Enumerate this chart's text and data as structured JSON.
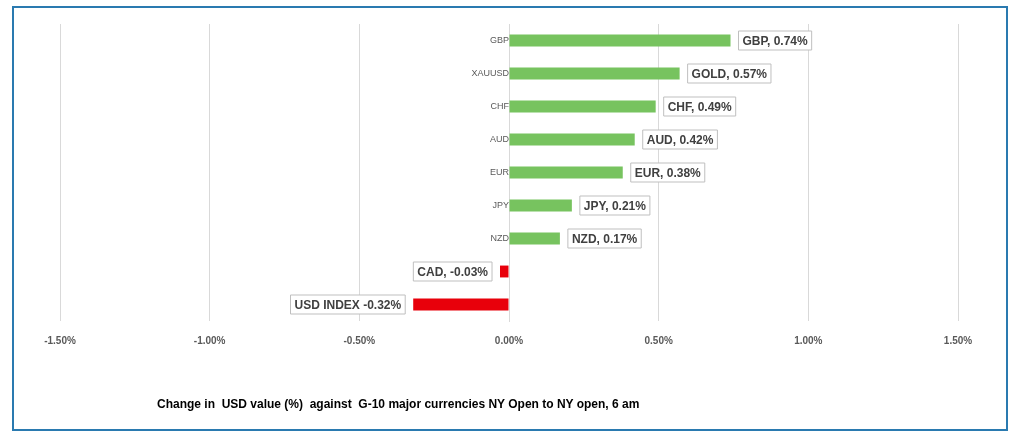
{
  "chart_data": {
    "type": "bar",
    "orientation": "horizontal",
    "annotations": [
      "Change in  USD value (%)  against  G-10 major currencies NY Open to NY open, 6 am"
    ],
    "categories": [
      "GBP",
      "XAUUSD",
      "CHF",
      "AUD",
      "EUR",
      "JPY",
      "NZD",
      null,
      null
    ],
    "values": [
      0.74,
      0.57,
      0.49,
      0.42,
      0.38,
      0.21,
      0.17,
      -0.03,
      -0.32
    ],
    "colors": [
      "#77c35f",
      "#77c35f",
      "#77c35f",
      "#77c35f",
      "#77c35f",
      "#77c35f",
      "#77c35f",
      "#e8000b",
      "#e8000b"
    ],
    "value_labels": [
      "GBP, 0.74%",
      "GOLD, 0.57%",
      "CHF, 0.49%",
      "AUD, 0.42%",
      "EUR, 0.38%",
      "JPY, 0.21%",
      "NZD, 0.17%",
      "CAD, -0.03%",
      "USD INDEX -0.32%"
    ],
    "xlim": [
      -1.5,
      1.5
    ],
    "xticks": [
      {
        "value": -1.5,
        "label": "-1.50%"
      },
      {
        "value": -1,
        "label": "-1.00%"
      },
      {
        "value": -0.5,
        "label": "-0.50%"
      },
      {
        "value": 0,
        "label": "0.00%"
      },
      {
        "value": 0.5,
        "label": "0.50%"
      },
      {
        "value": 1,
        "label": "1.00%"
      },
      {
        "value": 1.5,
        "label": "1.50%"
      }
    ],
    "grid": "x"
  }
}
